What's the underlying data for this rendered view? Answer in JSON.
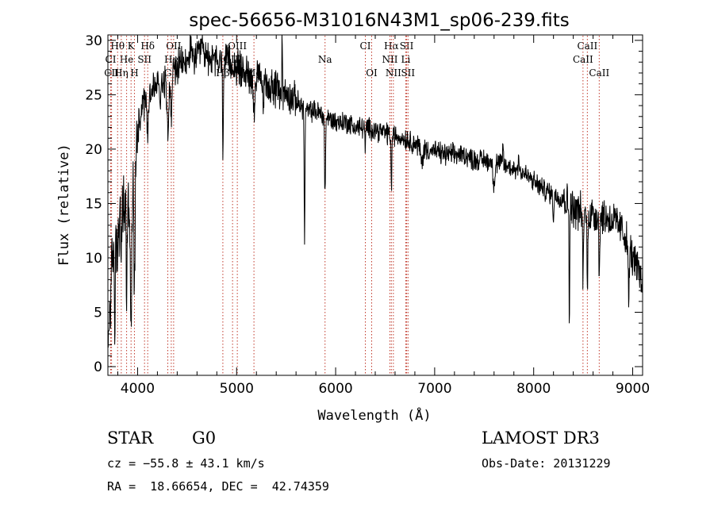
{
  "chart_data": {
    "type": "line",
    "title": "spec-56656-M31016N43M1_sp06-239.fits",
    "xlabel": "Wavelength (Å)",
    "ylabel": "Flux (relative)",
    "xlim": [
      3700,
      9100
    ],
    "ylim": [
      -0.8,
      30.5
    ],
    "x_ticks": [
      4000,
      5000,
      6000,
      7000,
      8000,
      9000
    ],
    "y_ticks": [
      0,
      5,
      10,
      15,
      20,
      25,
      30
    ],
    "grid": false,
    "line_color": "#000000",
    "marker_color": "#c0392b",
    "spectral_lines": [
      {
        "label": "Hθ",
        "x": 3798,
        "row": 0
      },
      {
        "label": "K",
        "x": 3934,
        "row": 0
      },
      {
        "label": "Hδ",
        "x": 4102,
        "row": 0
      },
      {
        "label": "OII",
        "x": 4364,
        "row": 0
      },
      {
        "label": "OIII",
        "x": 5007,
        "row": 0
      },
      {
        "label": "CI",
        "x": 6300,
        "row": 0
      },
      {
        "label": "Hα",
        "x": 6563,
        "row": 0
      },
      {
        "label": "SII",
        "x": 6717,
        "row": 0
      },
      {
        "label": "CaII",
        "x": 8542,
        "row": 0
      },
      {
        "label": "CI",
        "x": 3728,
        "row": 1
      },
      {
        "label": "He",
        "x": 3889,
        "row": 1
      },
      {
        "label": "SII",
        "x": 4070,
        "row": 1
      },
      {
        "label": "Hγ",
        "x": 4340,
        "row": 1
      },
      {
        "label": "OIII",
        "x": 4959,
        "row": 1
      },
      {
        "label": "Na",
        "x": 5893,
        "row": 1
      },
      {
        "label": "NII",
        "x": 6548,
        "row": 1
      },
      {
        "label": "Li",
        "x": 6708,
        "row": 1
      },
      {
        "label": "CaII",
        "x": 8498,
        "row": 1
      },
      {
        "label": "CII",
        "x": 3737,
        "row": 2
      },
      {
        "label": "Hη",
        "x": 3835,
        "row": 2
      },
      {
        "label": "H",
        "x": 3968,
        "row": 2
      },
      {
        "label": "G",
        "x": 4305,
        "row": 2
      },
      {
        "label": "Hβ",
        "x": 4861,
        "row": 2
      },
      {
        "label": "Mg",
        "x": 5175,
        "row": 2
      },
      {
        "label": "OI",
        "x": 6364,
        "row": 2
      },
      {
        "label": "NII",
        "x": 6583,
        "row": 2
      },
      {
        "label": "SII",
        "x": 6731,
        "row": 2
      },
      {
        "label": "CaII",
        "x": 8662,
        "row": 2
      }
    ],
    "continuum": [
      [
        3700,
        1
      ],
      [
        3720,
        6
      ],
      [
        3750,
        10
      ],
      [
        3780,
        12
      ],
      [
        3820,
        13
      ],
      [
        3860,
        15
      ],
      [
        3900,
        14
      ],
      [
        3940,
        17
      ],
      [
        3980,
        19
      ],
      [
        4000,
        22
      ],
      [
        4050,
        24
      ],
      [
        4100,
        25
      ],
      [
        4200,
        26
      ],
      [
        4300,
        26.5
      ],
      [
        4400,
        27.5
      ],
      [
        4500,
        28
      ],
      [
        4600,
        28.5
      ],
      [
        4700,
        28.5
      ],
      [
        4800,
        28
      ],
      [
        4900,
        28
      ],
      [
        5000,
        27.5
      ],
      [
        5100,
        27
      ],
      [
        5200,
        26.5
      ],
      [
        5300,
        26
      ],
      [
        5400,
        25.5
      ],
      [
        5500,
        25
      ],
      [
        5600,
        24.5
      ],
      [
        5700,
        23.5
      ],
      [
        5800,
        23.5
      ],
      [
        5900,
        23
      ],
      [
        6000,
        22.5
      ],
      [
        6100,
        22.5
      ],
      [
        6200,
        22
      ],
      [
        6300,
        22
      ],
      [
        6400,
        21.8
      ],
      [
        6500,
        21.5
      ],
      [
        6600,
        21.2
      ],
      [
        6700,
        21
      ],
      [
        6800,
        20.5
      ],
      [
        6900,
        20
      ],
      [
        7000,
        19.8
      ],
      [
        7100,
        19.5
      ],
      [
        7200,
        19.5
      ],
      [
        7300,
        19.5
      ],
      [
        7400,
        19
      ],
      [
        7500,
        19
      ],
      [
        7600,
        18.8
      ],
      [
        7700,
        18.5
      ],
      [
        7800,
        18.2
      ],
      [
        7900,
        17.8
      ],
      [
        8000,
        17
      ],
      [
        8100,
        16.3
      ],
      [
        8200,
        15.8
      ],
      [
        8300,
        15.5
      ],
      [
        8400,
        14.5
      ],
      [
        8500,
        14.2
      ],
      [
        8600,
        14
      ],
      [
        8700,
        13.8
      ],
      [
        8800,
        13.5
      ],
      [
        8900,
        12.5
      ],
      [
        9000,
        10
      ],
      [
        9100,
        8
      ]
    ],
    "absorption_features": [
      [
        3725,
        0.3,
        4
      ],
      [
        3770,
        8,
        4
      ],
      [
        3798,
        4,
        3
      ],
      [
        3835,
        4,
        4
      ],
      [
        3889,
        8,
        4
      ],
      [
        3934,
        14,
        7
      ],
      [
        3968,
        10,
        7
      ],
      [
        4102,
        4,
        6
      ],
      [
        4227,
        2,
        4
      ],
      [
        4305,
        4,
        10
      ],
      [
        4340,
        5,
        5
      ],
      [
        4861,
        8,
        4
      ],
      [
        5175,
        3,
        8
      ],
      [
        5270,
        2,
        6
      ],
      [
        5686,
        12,
        4
      ],
      [
        5893,
        7,
        5
      ],
      [
        6300,
        2,
        4
      ],
      [
        6563,
        5,
        4
      ],
      [
        6870,
        1.5,
        10
      ],
      [
        7600,
        2,
        10
      ],
      [
        8200,
        2,
        5
      ],
      [
        8360,
        11,
        3
      ],
      [
        8498,
        7,
        4
      ],
      [
        8542,
        8,
        4
      ],
      [
        8662,
        6,
        4
      ],
      [
        8960,
        5,
        5
      ]
    ],
    "emission_features": [
      [
        5460,
        5.5,
        3
      ],
      [
        4530,
        1.5,
        6
      ],
      [
        4650,
        1.5,
        6
      ],
      [
        4050,
        1,
        6
      ],
      [
        7690,
        2,
        4
      ],
      [
        7850,
        2,
        4
      ]
    ]
  },
  "info": {
    "object_class": "STAR",
    "subclass": "G0",
    "survey": "LAMOST DR3",
    "redshift": "cz = −55.8 ± 43.1 km/s",
    "obs_date": "Obs-Date: 20131229",
    "coords": "RA =  18.66654, DEC =  42.74359"
  }
}
